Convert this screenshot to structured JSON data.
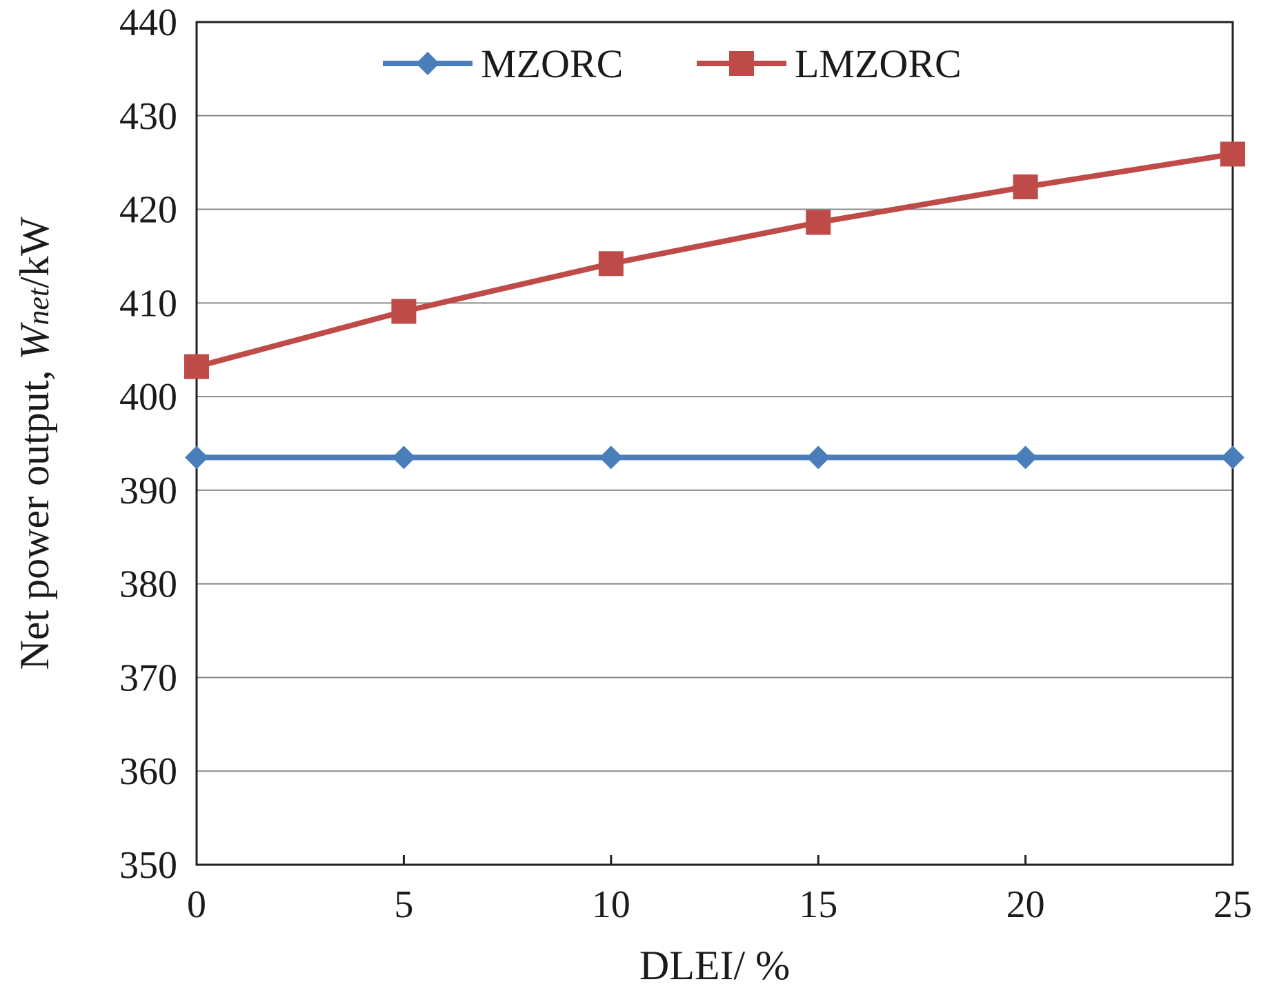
{
  "chart_data": {
    "type": "line",
    "title": "",
    "xlabel": "DLEI/ %",
    "ylabel": {
      "prefix": "Net power output, ",
      "var": "W",
      "sub": "net",
      "unit": "/kW"
    },
    "x": [
      0,
      5,
      10,
      15,
      20,
      25
    ],
    "xlim": [
      0,
      25
    ],
    "ylim": [
      350,
      440
    ],
    "xticks": [
      0,
      5,
      10,
      15,
      20,
      25
    ],
    "yticks": [
      350,
      360,
      370,
      380,
      390,
      400,
      410,
      420,
      430,
      440
    ],
    "grid": "horizontal",
    "legend_position": "top-center",
    "series": [
      {
        "name": "MZORC",
        "color": "#4a7ebb",
        "marker": "diamond",
        "values": [
          393.5,
          393.5,
          393.5,
          393.5,
          393.5,
          393.5
        ]
      },
      {
        "name": "LMZORC",
        "color": "#be4b48",
        "marker": "square",
        "values": [
          403.2,
          409.1,
          414.2,
          418.6,
          422.4,
          425.9
        ]
      }
    ]
  }
}
